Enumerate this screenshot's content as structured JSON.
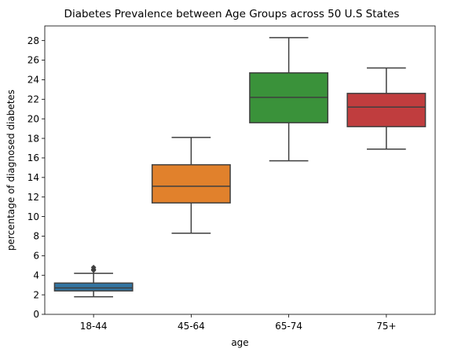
{
  "chart_data": {
    "type": "box",
    "title": "Diabetes Prevalence between Age Groups across 50 U.S States",
    "xlabel": "age",
    "ylabel": "percentage of diagnosed diabetes",
    "ylim": [
      0,
      29.5
    ],
    "yticks": [
      0,
      2,
      4,
      6,
      8,
      10,
      12,
      14,
      16,
      18,
      20,
      22,
      24,
      26,
      28
    ],
    "grid": false,
    "categories": [
      "18-44",
      "45-64",
      "65-74",
      "75+"
    ],
    "boxes": [
      {
        "category": "18-44",
        "min": 1.8,
        "q1": 2.4,
        "median": 2.7,
        "q3": 3.2,
        "max": 4.2,
        "outliers": [
          4.5,
          4.6,
          4.8
        ],
        "color": "#3274a1"
      },
      {
        "category": "45-64",
        "min": 8.3,
        "q1": 11.4,
        "median": 13.1,
        "q3": 15.3,
        "max": 18.1,
        "outliers": [],
        "color": "#e1812c"
      },
      {
        "category": "65-74",
        "min": 15.7,
        "q1": 19.6,
        "median": 22.2,
        "q3": 24.7,
        "max": 28.3,
        "outliers": [],
        "color": "#3a923a"
      },
      {
        "category": "75+",
        "min": 16.9,
        "q1": 19.2,
        "median": 21.2,
        "q3": 22.6,
        "max": 25.2,
        "outliers": [],
        "color": "#c03d3e"
      }
    ]
  }
}
